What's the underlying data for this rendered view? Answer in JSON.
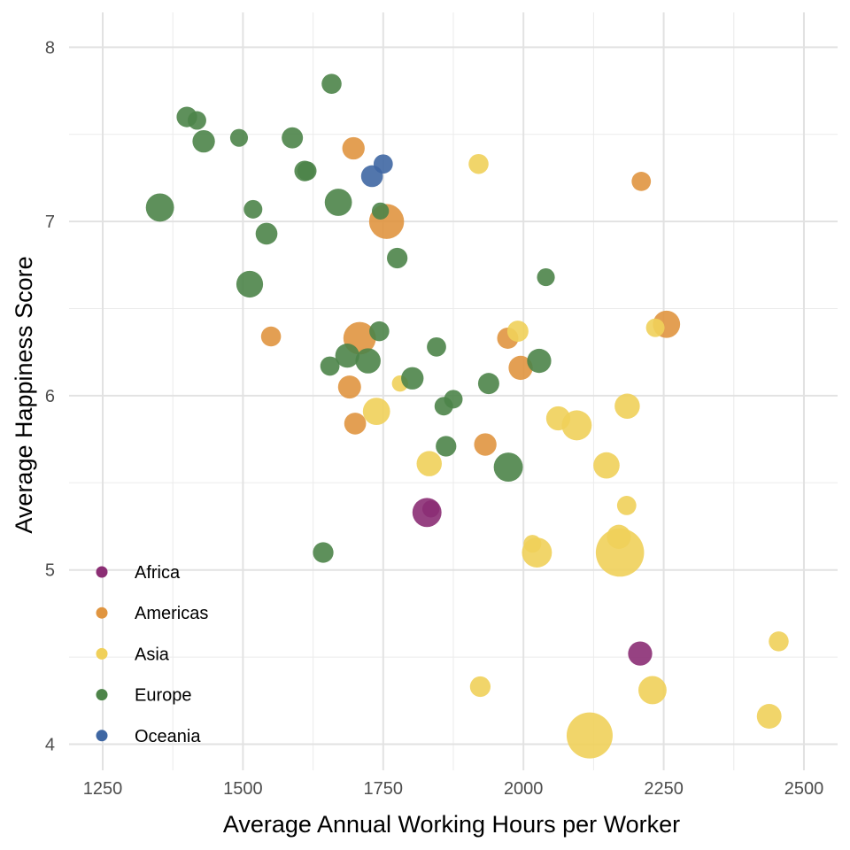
{
  "chart_data": {
    "type": "scatter",
    "title": "",
    "xlabel": "Average Annual Working Hours per Worker",
    "ylabel": "Average Happiness Score",
    "xlim": [
      1190,
      2560
    ],
    "ylim": [
      3.85,
      8.2
    ],
    "x_ticks": [
      1250,
      1500,
      1750,
      2000,
      2250,
      2500
    ],
    "y_ticks": [
      4,
      5,
      6,
      7,
      8
    ],
    "grid": true,
    "legend_position": "bottom-left",
    "legend": [
      {
        "label": "Africa",
        "color": "#8B2E74"
      },
      {
        "label": "Americas",
        "color": "#E09540"
      },
      {
        "label": "Asia",
        "color": "#F0D05A"
      },
      {
        "label": "Europe",
        "color": "#4D8449"
      },
      {
        "label": "Oceania",
        "color": "#3F67A3"
      }
    ],
    "series": [
      {
        "name": "Africa",
        "color": "#8B2E74",
        "points": [
          {
            "x": 1828,
            "y": 5.33,
            "size": 1.6
          },
          {
            "x": 1835,
            "y": 5.35,
            "size": 0.55
          },
          {
            "x": 2208,
            "y": 4.52,
            "size": 1.1
          }
        ]
      },
      {
        "name": "Americas",
        "color": "#E09540",
        "points": [
          {
            "x": 1697,
            "y": 7.42,
            "size": 0.95
          },
          {
            "x": 1756,
            "y": 7.0,
            "size": 2.3
          },
          {
            "x": 1708,
            "y": 6.33,
            "size": 2.0
          },
          {
            "x": 1550,
            "y": 6.34,
            "size": 0.75
          },
          {
            "x": 1690,
            "y": 6.05,
            "size": 1.0
          },
          {
            "x": 1700,
            "y": 5.84,
            "size": 0.9
          },
          {
            "x": 1932,
            "y": 5.72,
            "size": 0.95
          },
          {
            "x": 1972,
            "y": 6.33,
            "size": 0.85
          },
          {
            "x": 1995,
            "y": 6.16,
            "size": 1.1
          },
          {
            "x": 2210,
            "y": 7.23,
            "size": 0.7
          },
          {
            "x": 2255,
            "y": 6.41,
            "size": 1.4
          }
        ]
      },
      {
        "name": "Asia",
        "color": "#F0D05A",
        "points": [
          {
            "x": 1920,
            "y": 7.33,
            "size": 0.75
          },
          {
            "x": 1990,
            "y": 6.37,
            "size": 0.85
          },
          {
            "x": 2235,
            "y": 6.39,
            "size": 0.65
          },
          {
            "x": 1780,
            "y": 6.07,
            "size": 0.5
          },
          {
            "x": 1738,
            "y": 5.91,
            "size": 1.4
          },
          {
            "x": 2062,
            "y": 5.87,
            "size": 1.1
          },
          {
            "x": 2095,
            "y": 5.83,
            "size": 1.7
          },
          {
            "x": 2185,
            "y": 5.94,
            "size": 1.2
          },
          {
            "x": 1832,
            "y": 5.61,
            "size": 1.2
          },
          {
            "x": 2148,
            "y": 5.6,
            "size": 1.3
          },
          {
            "x": 2184,
            "y": 5.37,
            "size": 0.7
          },
          {
            "x": 2170,
            "y": 5.19,
            "size": 1.1
          },
          {
            "x": 2016,
            "y": 5.15,
            "size": 0.6
          },
          {
            "x": 2024,
            "y": 5.1,
            "size": 1.7
          },
          {
            "x": 2172,
            "y": 5.1,
            "size": 4.4
          },
          {
            "x": 2455,
            "y": 4.59,
            "size": 0.75
          },
          {
            "x": 1923,
            "y": 4.33,
            "size": 0.8
          },
          {
            "x": 2230,
            "y": 4.31,
            "size": 1.5
          },
          {
            "x": 2438,
            "y": 4.16,
            "size": 1.15
          },
          {
            "x": 2118,
            "y": 4.05,
            "size": 4.0
          }
        ]
      },
      {
        "name": "Europe",
        "color": "#4D8449",
        "points": [
          {
            "x": 1658,
            "y": 7.79,
            "size": 0.75
          },
          {
            "x": 1400,
            "y": 7.6,
            "size": 0.8
          },
          {
            "x": 1418,
            "y": 7.58,
            "size": 0.65
          },
          {
            "x": 1430,
            "y": 7.46,
            "size": 0.95
          },
          {
            "x": 1493,
            "y": 7.48,
            "size": 0.6
          },
          {
            "x": 1588,
            "y": 7.48,
            "size": 0.85
          },
          {
            "x": 1610,
            "y": 7.29,
            "size": 0.8
          },
          {
            "x": 1614,
            "y": 7.29,
            "size": 0.7
          },
          {
            "x": 1352,
            "y": 7.08,
            "size": 1.5
          },
          {
            "x": 1518,
            "y": 7.07,
            "size": 0.65
          },
          {
            "x": 1670,
            "y": 7.11,
            "size": 1.4
          },
          {
            "x": 1745,
            "y": 7.06,
            "size": 0.55
          },
          {
            "x": 1542,
            "y": 6.93,
            "size": 0.9
          },
          {
            "x": 1775,
            "y": 6.79,
            "size": 0.8
          },
          {
            "x": 1512,
            "y": 6.64,
            "size": 1.35
          },
          {
            "x": 2040,
            "y": 6.68,
            "size": 0.6
          },
          {
            "x": 1743,
            "y": 6.37,
            "size": 0.75
          },
          {
            "x": 1845,
            "y": 6.28,
            "size": 0.7
          },
          {
            "x": 1655,
            "y": 6.17,
            "size": 0.7
          },
          {
            "x": 1686,
            "y": 6.23,
            "size": 1.1
          },
          {
            "x": 1723,
            "y": 6.2,
            "size": 1.2
          },
          {
            "x": 1802,
            "y": 6.1,
            "size": 0.95
          },
          {
            "x": 1938,
            "y": 6.07,
            "size": 0.85
          },
          {
            "x": 2028,
            "y": 6.2,
            "size": 1.1
          },
          {
            "x": 1858,
            "y": 5.94,
            "size": 0.65
          },
          {
            "x": 1875,
            "y": 5.98,
            "size": 0.65
          },
          {
            "x": 1862,
            "y": 5.71,
            "size": 0.8
          },
          {
            "x": 1973,
            "y": 5.59,
            "size": 1.6
          },
          {
            "x": 1643,
            "y": 5.1,
            "size": 0.8
          }
        ]
      },
      {
        "name": "Oceania",
        "color": "#3F67A3",
        "points": [
          {
            "x": 1750,
            "y": 7.33,
            "size": 0.7
          },
          {
            "x": 1730,
            "y": 7.26,
            "size": 0.9
          }
        ]
      }
    ]
  }
}
